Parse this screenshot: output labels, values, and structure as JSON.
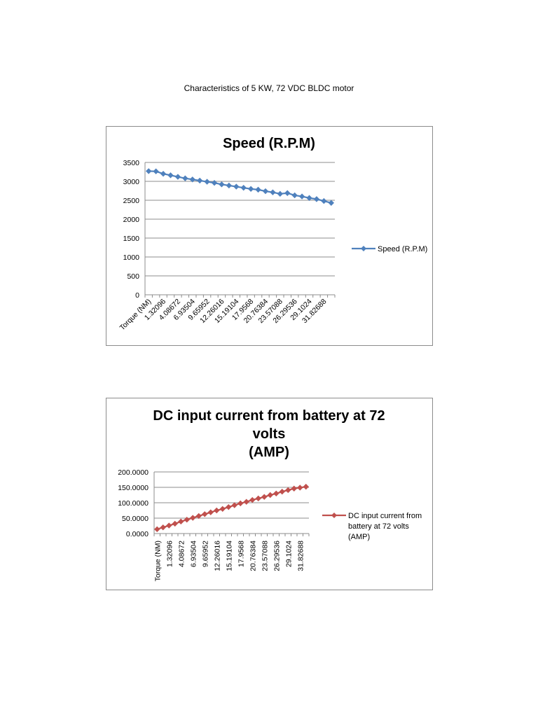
{
  "document": {
    "title": "Characteristics of 5 KW, 72 VDC BLDC motor"
  },
  "chart_data": [
    {
      "type": "line",
      "title": "Speed (R.P.M)",
      "xlabel": "",
      "ylabel": "",
      "ylim": [
        0,
        3500
      ],
      "yticks": [
        "0",
        "500",
        "1000",
        "1500",
        "2000",
        "2500",
        "3000",
        "3500"
      ],
      "grid": true,
      "legend_position": "right",
      "x_tick_labels": [
        "Torque (NM)",
        "1.32096",
        "4.08672",
        "6.93504",
        "9.65952",
        "12.26016",
        "15.19104",
        "17.9568",
        "20.76384",
        "23.57088",
        "26.29536",
        "29.1024",
        "31.82688"
      ],
      "series": [
        {
          "name": "Speed (R.P.M)",
          "color": "#4f81bd",
          "marker": "diamond",
          "values": [
            3270,
            3265,
            3200,
            3160,
            3120,
            3080,
            3050,
            3020,
            2990,
            2960,
            2920,
            2890,
            2860,
            2830,
            2800,
            2780,
            2740,
            2710,
            2670,
            2690,
            2630,
            2600,
            2560,
            2530,
            2480,
            2430
          ]
        }
      ]
    },
    {
      "type": "line",
      "title": "DC input current from battery at 72 volts (AMP)",
      "title_lines": [
        "DC input current from battery at 72",
        "volts",
        "(AMP)"
      ],
      "xlabel": "",
      "ylabel": "",
      "ylim": [
        0,
        200
      ],
      "yticks": [
        "0.0000",
        "50.0000",
        "100.0000",
        "150.0000",
        "200.0000"
      ],
      "grid": true,
      "legend_position": "right",
      "x_tick_labels": [
        "Torque (NM)",
        "1.32096",
        "4.08672",
        "6.93504",
        "9.65952",
        "12.26016",
        "15.19104",
        "17.9568",
        "20.76384",
        "23.57088",
        "26.29536",
        "29.1024",
        "31.82688"
      ],
      "series": [
        {
          "name": "DC input current from battery at 72 volts (AMP)",
          "legend_lines": [
            "DC input current from",
            "battery at 72 volts",
            " (AMP)"
          ],
          "color": "#c0504d",
          "marker": "diamond",
          "values": [
            14,
            20,
            26,
            32,
            39,
            45,
            51,
            57,
            63,
            69,
            75,
            80,
            86,
            92,
            98,
            103,
            109,
            114,
            119,
            125,
            130,
            136,
            141,
            146,
            149,
            152
          ]
        }
      ]
    }
  ]
}
